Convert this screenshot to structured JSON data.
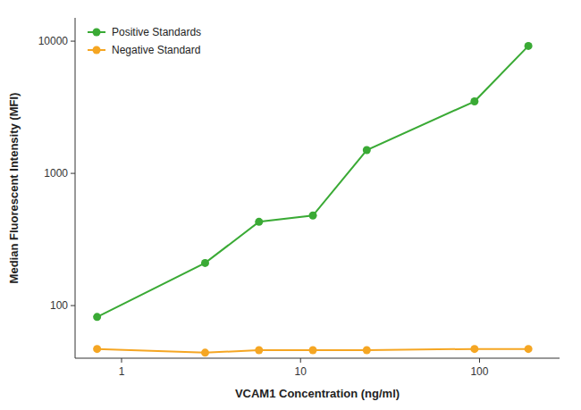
{
  "chart_data": {
    "type": "line",
    "xlabel": "VCAM1 Concentration (ng/ml)",
    "ylabel": "Median Fluorescent Intensity (MFI)",
    "x": [
      0.73,
      2.93,
      5.86,
      11.72,
      23.44,
      93.75,
      187.5
    ],
    "series": [
      {
        "name": "Positive Standards",
        "color": "#3aaa35",
        "marker": "circle",
        "values": [
          82,
          210,
          430,
          480,
          1500,
          3500,
          9200
        ]
      },
      {
        "name": "Negative Standard",
        "color": "#f5a623",
        "marker": "circle",
        "values": [
          47,
          44,
          46,
          46,
          46,
          47,
          47
        ]
      }
    ],
    "xlim": [
      0.55,
      280
    ],
    "ylim": [
      40,
      15000
    ],
    "xticks": [
      1,
      10,
      100
    ],
    "yticks": [
      100,
      1000,
      10000
    ],
    "log": true,
    "grid": false,
    "legend": "upper left"
  }
}
